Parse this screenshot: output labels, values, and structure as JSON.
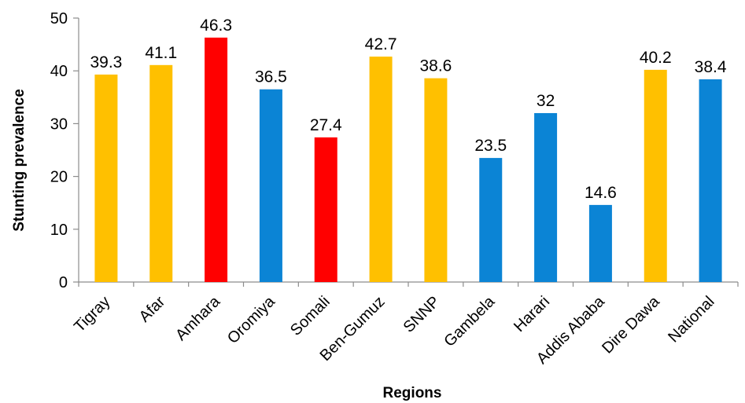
{
  "chart_data": {
    "type": "bar",
    "title": "",
    "xlabel": "Regions",
    "ylabel": "Stunting prevalence",
    "ylim": [
      0,
      50
    ],
    "yticks": [
      0,
      10,
      20,
      30,
      40,
      50
    ],
    "grid": false,
    "legend": "none",
    "colors": {
      "yellow": "#FFC000",
      "red": "#FF0000",
      "blue": "#0B84D5"
    },
    "categories": [
      "Tigray",
      "Afar",
      "Amhara",
      "Oromiya",
      "Somali",
      "Ben-Gumuz",
      "SNNP",
      "Gambela",
      "Harari",
      "Addis Ababa",
      "Dire Dawa",
      "National"
    ],
    "values": [
      39.3,
      41.1,
      46.3,
      36.5,
      27.4,
      42.7,
      38.6,
      23.5,
      32,
      14.6,
      40.2,
      38.4
    ],
    "value_labels": [
      "39.3",
      "41.1",
      "46.3",
      "36.5",
      "27.4",
      "42.7",
      "38.6",
      "23.5",
      "32",
      "14.6",
      "40.2",
      "38.4"
    ],
    "bar_colors": [
      "yellow",
      "yellow",
      "red",
      "blue",
      "red",
      "yellow",
      "yellow",
      "blue",
      "blue",
      "blue",
      "yellow",
      "blue"
    ]
  }
}
